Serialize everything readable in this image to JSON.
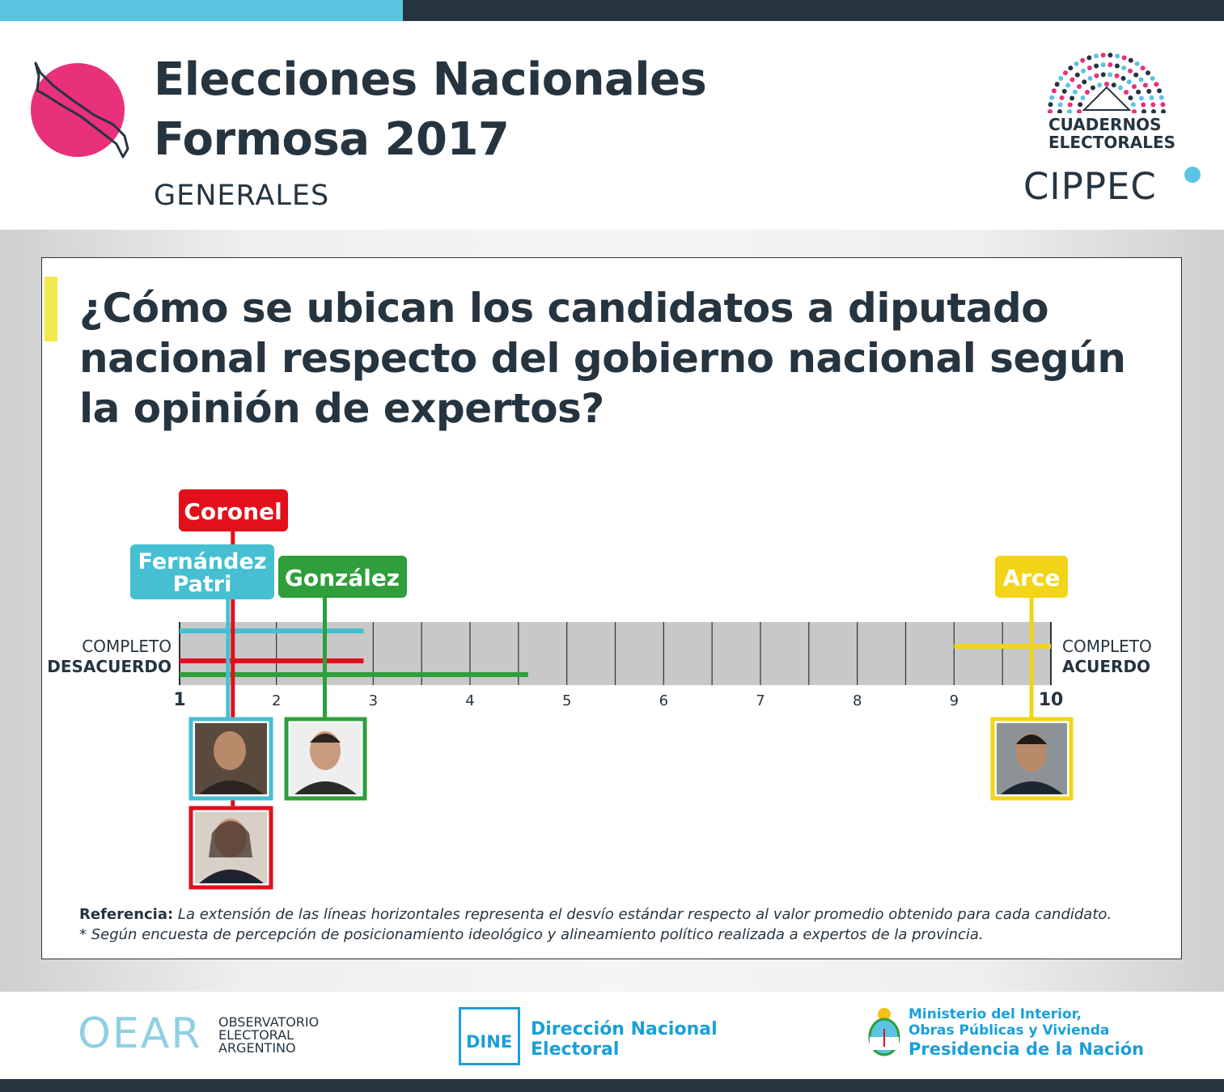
{
  "header": {
    "title_line1": "Elecciones Nacionales",
    "title_line2": "Formosa 2017",
    "subtitle": "GENERALES",
    "logo_text_1": "CUADERNOS",
    "logo_text_2": "ELECTORALES",
    "brand": "CIPPEC"
  },
  "question": "¿Cómo se ubican los candidatos a diputado nacional respecto del gobierno nacional según la opinión de expertos?",
  "colors": {
    "red": "#e2101b",
    "blue": "#45bfd1",
    "green": "#2e9f3b",
    "yellow": "#f2d418",
    "dark": "#263440"
  },
  "chart_data": {
    "type": "dot-range",
    "xlim": [
      1,
      10
    ],
    "ticks": [
      "1",
      "2",
      "3",
      "4",
      "5",
      "6",
      "7",
      "8",
      "9",
      "10"
    ],
    "left_label_top": "COMPLETO",
    "left_label_bottom": "DESACUERDO",
    "right_label_top": "COMPLETO",
    "right_label_bottom": "ACUERDO",
    "series": [
      {
        "name": "Coronel",
        "mean": 1.55,
        "range": [
          1,
          2.9
        ],
        "color": "#e2101b"
      },
      {
        "name": "Fernández Patri",
        "mean": 1.5,
        "range": [
          1,
          2.9
        ],
        "color": "#45bfd1"
      },
      {
        "name": "González",
        "mean": 2.5,
        "range": [
          1,
          4.6
        ],
        "color": "#2e9f3b"
      },
      {
        "name": "Arce",
        "mean": 9.8,
        "range": [
          9,
          10
        ],
        "color": "#f2d418"
      }
    ],
    "labels": {
      "coronel": "Coronel",
      "fernandez_1": "Fernández",
      "fernandez_2": "Patri",
      "gonzalez": "González",
      "arce": "Arce"
    }
  },
  "reference": {
    "label": "Referencia:",
    "text": " La extensión de las líneas horizontales representa el desvío estándar respecto al valor promedio obtenido para cada candidato.",
    "note": "* Según encuesta de percepción de posicionamiento ideológico y alineamiento político realizada a expertos de la provincia."
  },
  "footer": {
    "oear_big": "OEAR",
    "oear_line1": "OBSERVATORIO",
    "oear_line2": "ELECTORAL",
    "oear_line3": "ARGENTINO",
    "dine_logo": "DINE",
    "dine_line1": "Dirección Nacional",
    "dine_line2": "Electoral",
    "min_line1": "Ministerio del Interior,",
    "min_line2": "Obras Públicas y Vivienda",
    "min_line3": "Presidencia de la Nación"
  }
}
